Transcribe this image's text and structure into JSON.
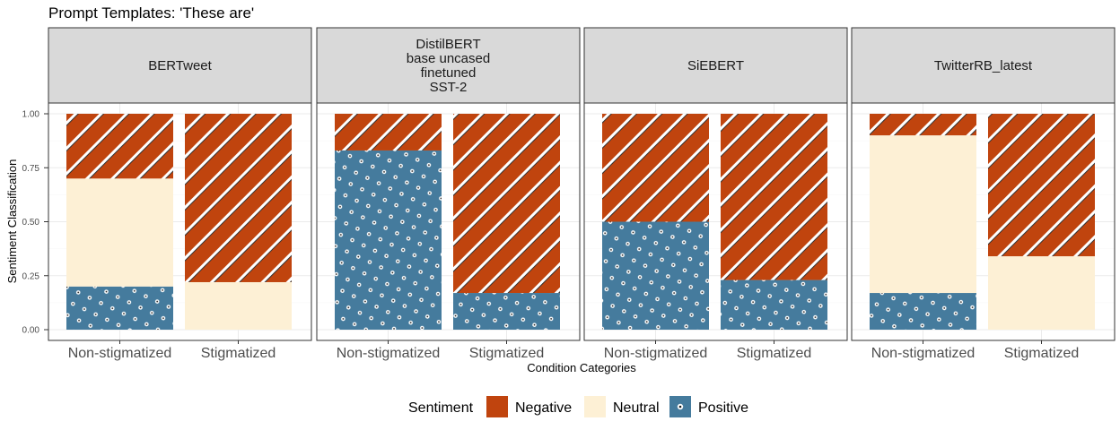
{
  "chart_data": {
    "type": "bar",
    "stacked": true,
    "title": "Prompt Templates: 'These are'",
    "xlabel": "Condition Categories",
    "ylabel": "Sentiment Classification",
    "categories": [
      "Non-stigmatized",
      "Stigmatized"
    ],
    "y_ticks": [
      "0.00",
      "0.25",
      "0.50",
      "0.75",
      "1.00"
    ],
    "ylim": [
      0,
      1
    ],
    "legend": {
      "title": "Sentiment",
      "position": "bottom",
      "entries": [
        "Negative",
        "Neutral",
        "Positive"
      ]
    },
    "colors": {
      "Negative": "#C0440E",
      "Neutral": "#FDF0D5",
      "Positive": "#457B9D"
    },
    "panels": [
      {
        "name": "BERTweet",
        "title_lines": [
          "BERTweet"
        ],
        "series": [
          {
            "name": "Positive",
            "values": [
              0.2,
              0.0
            ]
          },
          {
            "name": "Neutral",
            "values": [
              0.5,
              0.22
            ]
          },
          {
            "name": "Negative",
            "values": [
              0.3,
              0.78
            ]
          }
        ]
      },
      {
        "name": "DistilBERT base uncased finetuned SST-2",
        "title_lines": [
          "DistilBERT",
          "base uncased",
          "finetuned",
          "SST-2"
        ],
        "series": [
          {
            "name": "Positive",
            "values": [
              0.83,
              0.17
            ]
          },
          {
            "name": "Neutral",
            "values": [
              0.0,
              0.0
            ]
          },
          {
            "name": "Negative",
            "values": [
              0.17,
              0.83
            ]
          }
        ]
      },
      {
        "name": "SiEBERT",
        "title_lines": [
          "SiEBERT"
        ],
        "series": [
          {
            "name": "Positive",
            "values": [
              0.5,
              0.23
            ]
          },
          {
            "name": "Neutral",
            "values": [
              0.0,
              0.0
            ]
          },
          {
            "name": "Negative",
            "values": [
              0.5,
              0.77
            ]
          }
        ]
      },
      {
        "name": "TwitterRB_latest",
        "title_lines": [
          "TwitterRB_latest"
        ],
        "series": [
          {
            "name": "Positive",
            "values": [
              0.17,
              0.0
            ]
          },
          {
            "name": "Neutral",
            "values": [
              0.73,
              0.34
            ]
          },
          {
            "name": "Negative",
            "values": [
              0.1,
              0.66
            ]
          }
        ]
      }
    ]
  }
}
